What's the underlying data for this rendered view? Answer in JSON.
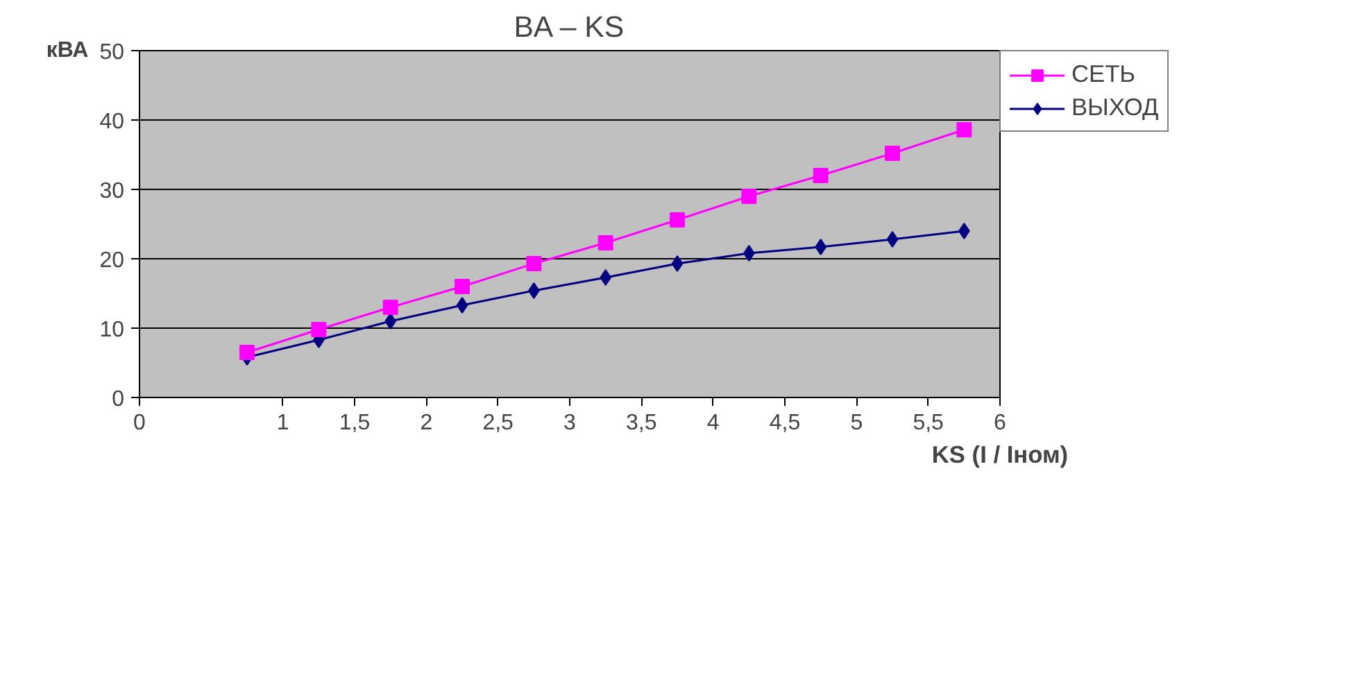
{
  "chart_data": {
    "type": "line",
    "title": "BA – KS",
    "xlabel": "KS (I / Iном)",
    "ylabel": "кВА",
    "x": [
      0.75,
      1.25,
      1.75,
      2.25,
      2.75,
      3.25,
      3.75,
      4.25,
      4.75,
      5.25,
      5.75
    ],
    "series": [
      {
        "name": "СЕТЬ",
        "color": "#ff00ff",
        "marker": "square",
        "values": [
          6.5,
          9.8,
          13,
          16,
          19.3,
          22.3,
          25.6,
          29,
          32,
          35.2,
          38.6
        ]
      },
      {
        "name": "ВЫХОД",
        "color": "#000080",
        "marker": "diamond",
        "values": [
          5.8,
          8.3,
          11,
          13.3,
          15.4,
          17.3,
          19.3,
          20.8,
          21.7,
          22.8,
          24
        ]
      }
    ],
    "xlim": [
      0,
      6
    ],
    "ylim": [
      0,
      50
    ],
    "xticks": [
      0,
      1,
      {
        "value": 1.5,
        "label": "1,5"
      },
      2,
      {
        "value": 2.5,
        "label": "2,5"
      },
      3,
      {
        "value": 3.5,
        "label": "3,5"
      },
      4,
      {
        "value": 4.5,
        "label": "4,5"
      },
      5,
      {
        "value": 5.5,
        "label": "5,5"
      },
      6
    ],
    "yticks": [
      0,
      10,
      20,
      30,
      40,
      50
    ],
    "grid": "y",
    "legend": "right",
    "line_style": "solid"
  }
}
